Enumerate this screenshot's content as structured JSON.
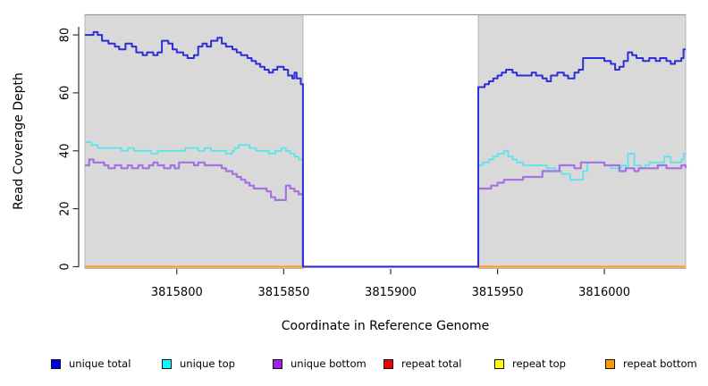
{
  "chart_data": {
    "type": "line",
    "step": true,
    "title": "",
    "xlabel": "Coordinate in Reference Genome",
    "ylabel": "Read Coverage Depth",
    "xlim": [
      3815757,
      3816038
    ],
    "ylim": [
      0,
      87
    ],
    "x_ticks": [
      3815800,
      3815850,
      3815900,
      3815950,
      3816000
    ],
    "y_ticks": [
      0,
      20,
      40,
      60,
      80
    ],
    "grid": false,
    "legend_position": "bottom",
    "plot_bg_color": "#d9d9d9",
    "plot_bg_border_color": "#b5b5b5",
    "gap_region": {
      "x0": 3815859,
      "x1": 3815941,
      "note": "white uncovered interval, all lines at 0"
    },
    "background_regions": [
      {
        "x0": 3815757,
        "x1": 3815859
      },
      {
        "x0": 3815941,
        "x1": 3816038
      }
    ],
    "series": [
      {
        "name": "unique total",
        "color": "#0000e6",
        "line_color": "#2d2dd9",
        "line_width": 2,
        "draw_order": 5,
        "segments": [
          [
            [
              3815757,
              80
            ],
            [
              3815761,
              81
            ],
            [
              3815763,
              80
            ],
            [
              3815765,
              78
            ],
            [
              3815768,
              77
            ],
            [
              3815771,
              76
            ],
            [
              3815773,
              75
            ],
            [
              3815776,
              77
            ],
            [
              3815779,
              76
            ],
            [
              3815781,
              74
            ],
            [
              3815784,
              73
            ],
            [
              3815786,
              74
            ],
            [
              3815789,
              73
            ],
            [
              3815791,
              74
            ],
            [
              3815793,
              78
            ],
            [
              3815796,
              77
            ],
            [
              3815798,
              75
            ],
            [
              3815800,
              74
            ],
            [
              3815803,
              73
            ],
            [
              3815805,
              72
            ],
            [
              3815808,
              73
            ],
            [
              3815810,
              76
            ],
            [
              3815812,
              77
            ],
            [
              3815814,
              76
            ],
            [
              3815816,
              78
            ],
            [
              3815819,
              79
            ],
            [
              3815821,
              77
            ],
            [
              3815823,
              76
            ],
            [
              3815826,
              75
            ],
            [
              3815828,
              74
            ],
            [
              3815830,
              73
            ],
            [
              3815833,
              72
            ],
            [
              3815835,
              71
            ],
            [
              3815837,
              70
            ],
            [
              3815839,
              69
            ],
            [
              3815841,
              68
            ],
            [
              3815843,
              67
            ],
            [
              3815845,
              68
            ],
            [
              3815847,
              69
            ],
            [
              3815850,
              68
            ],
            [
              3815852,
              66
            ],
            [
              3815854,
              65
            ],
            [
              3815855,
              67
            ],
            [
              3815856,
              65
            ],
            [
              3815858,
              63
            ],
            [
              3815859,
              0
            ],
            [
              3815941,
              62
            ],
            [
              3815944,
              63
            ],
            [
              3815946,
              64
            ],
            [
              3815948,
              65
            ],
            [
              3815950,
              66
            ],
            [
              3815952,
              67
            ],
            [
              3815954,
              68
            ],
            [
              3815957,
              67
            ],
            [
              3815959,
              66
            ],
            [
              3815963,
              66
            ],
            [
              3815966,
              67
            ],
            [
              3815968,
              66
            ],
            [
              3815971,
              65
            ],
            [
              3815973,
              64
            ],
            [
              3815975,
              66
            ],
            [
              3815978,
              67
            ],
            [
              3815981,
              66
            ],
            [
              3815983,
              65
            ],
            [
              3815986,
              67
            ],
            [
              3815988,
              68
            ],
            [
              3815990,
              72
            ],
            [
              3815997,
              72
            ],
            [
              3816000,
              71
            ],
            [
              3816003,
              70
            ],
            [
              3816005,
              68
            ],
            [
              3816007,
              69
            ],
            [
              3816009,
              71
            ],
            [
              3816011,
              74
            ],
            [
              3816013,
              73
            ],
            [
              3816015,
              72
            ],
            [
              3816018,
              71
            ],
            [
              3816021,
              72
            ],
            [
              3816024,
              71
            ],
            [
              3816026,
              72
            ],
            [
              3816029,
              71
            ],
            [
              3816031,
              70
            ],
            [
              3816033,
              71
            ],
            [
              3816036,
              72
            ],
            [
              3816037,
              75
            ],
            [
              3816038,
              75
            ]
          ]
        ]
      },
      {
        "name": "unique top",
        "color": "#00ffff",
        "line_color": "#5ce4ec",
        "line_width": 1.8,
        "draw_order": 3,
        "segments": [
          [
            [
              3815757,
              43
            ],
            [
              3815760,
              42
            ],
            [
              3815763,
              41
            ],
            [
              3815771,
              41
            ],
            [
              3815774,
              40
            ],
            [
              3815777,
              41
            ],
            [
              3815780,
              40
            ],
            [
              3815785,
              40
            ],
            [
              3815788,
              39
            ],
            [
              3815791,
              40
            ],
            [
              3815801,
              40
            ],
            [
              3815804,
              41
            ],
            [
              3815807,
              41
            ],
            [
              3815810,
              40
            ],
            [
              3815813,
              41
            ],
            [
              3815816,
              40
            ],
            [
              3815820,
              40
            ],
            [
              3815823,
              39
            ],
            [
              3815826,
              40
            ],
            [
              3815827,
              41
            ],
            [
              3815829,
              42
            ],
            [
              3815832,
              42
            ],
            [
              3815834,
              41
            ],
            [
              3815837,
              40
            ],
            [
              3815840,
              40
            ],
            [
              3815843,
              39
            ],
            [
              3815846,
              40
            ],
            [
              3815849,
              41
            ],
            [
              3815851,
              40
            ],
            [
              3815853,
              39
            ],
            [
              3815855,
              38
            ],
            [
              3815857,
              37
            ],
            [
              3815859,
              0
            ],
            [
              3815941,
              35
            ],
            [
              3815943,
              36
            ],
            [
              3815946,
              37
            ],
            [
              3815948,
              38
            ],
            [
              3815950,
              39
            ],
            [
              3815953,
              40
            ],
            [
              3815955,
              38
            ],
            [
              3815957,
              37
            ],
            [
              3815959,
              36
            ],
            [
              3815962,
              35
            ],
            [
              3815969,
              35
            ],
            [
              3815973,
              34
            ],
            [
              3815977,
              33
            ],
            [
              3815980,
              32
            ],
            [
              3815984,
              30
            ],
            [
              3815988,
              30
            ],
            [
              3815990,
              33
            ],
            [
              3815992,
              36
            ],
            [
              3815997,
              36
            ],
            [
              3816000,
              35
            ],
            [
              3816003,
              34
            ],
            [
              3816008,
              35
            ],
            [
              3816010,
              34
            ],
            [
              3816011,
              39
            ],
            [
              3816014,
              35
            ],
            [
              3816017,
              34
            ],
            [
              3816019,
              35
            ],
            [
              3816021,
              36
            ],
            [
              3816025,
              36
            ],
            [
              3816028,
              38
            ],
            [
              3816031,
              36
            ],
            [
              3816034,
              36
            ],
            [
              3816036,
              37
            ],
            [
              3816037,
              39
            ],
            [
              3816038,
              39
            ]
          ]
        ]
      },
      {
        "name": "unique bottom",
        "color": "#a020f0",
        "line_color": "#a672e2",
        "line_width": 2.2,
        "draw_order": 4,
        "segments": [
          [
            [
              3815757,
              35
            ],
            [
              3815759,
              37
            ],
            [
              3815761,
              36
            ],
            [
              3815766,
              35
            ],
            [
              3815768,
              34
            ],
            [
              3815771,
              35
            ],
            [
              3815774,
              34
            ],
            [
              3815777,
              35
            ],
            [
              3815779,
              34
            ],
            [
              3815782,
              35
            ],
            [
              3815784,
              34
            ],
            [
              3815787,
              35
            ],
            [
              3815789,
              36
            ],
            [
              3815791,
              35
            ],
            [
              3815794,
              34
            ],
            [
              3815797,
              35
            ],
            [
              3815799,
              34
            ],
            [
              3815801,
              36
            ],
            [
              3815806,
              36
            ],
            [
              3815808,
              35
            ],
            [
              3815810,
              36
            ],
            [
              3815813,
              35
            ],
            [
              3815818,
              35
            ],
            [
              3815821,
              34
            ],
            [
              3815823,
              33
            ],
            [
              3815826,
              32
            ],
            [
              3815828,
              31
            ],
            [
              3815830,
              30
            ],
            [
              3815832,
              29
            ],
            [
              3815834,
              28
            ],
            [
              3815836,
              27
            ],
            [
              3815840,
              27
            ],
            [
              3815842,
              26
            ],
            [
              3815844,
              24
            ],
            [
              3815846,
              23
            ],
            [
              3815850,
              23
            ],
            [
              3815851,
              28
            ],
            [
              3815853,
              27
            ],
            [
              3815855,
              26
            ],
            [
              3815857,
              25
            ],
            [
              3815859,
              0
            ],
            [
              3815941,
              27
            ],
            [
              3815945,
              27
            ],
            [
              3815947,
              28
            ],
            [
              3815950,
              29
            ],
            [
              3815953,
              30
            ],
            [
              3815959,
              30
            ],
            [
              3815962,
              31
            ],
            [
              3815968,
              31
            ],
            [
              3815971,
              33
            ],
            [
              3815976,
              33
            ],
            [
              3815979,
              35
            ],
            [
              3815984,
              35
            ],
            [
              3815986,
              34
            ],
            [
              3815989,
              36
            ],
            [
              3815997,
              36
            ],
            [
              3816000,
              35
            ],
            [
              3816005,
              35
            ],
            [
              3816007,
              33
            ],
            [
              3816010,
              34
            ],
            [
              3816014,
              33
            ],
            [
              3816016,
              34
            ],
            [
              3816022,
              34
            ],
            [
              3816025,
              35
            ],
            [
              3816029,
              34
            ],
            [
              3816034,
              34
            ],
            [
              3816036,
              35
            ],
            [
              3816038,
              34
            ]
          ]
        ]
      },
      {
        "name": "repeat total",
        "color": "#ee0000",
        "line_color": "#ee0000",
        "line_width": 2,
        "draw_order": 0,
        "segments": [
          [
            [
              3815757,
              0
            ],
            [
              3815859,
              0
            ]
          ],
          [
            [
              3815941,
              0
            ],
            [
              3816038,
              0
            ]
          ]
        ]
      },
      {
        "name": "repeat top",
        "color": "#ffff00",
        "line_color": "#ffff00",
        "line_width": 2,
        "draw_order": 1,
        "segments": [
          [
            [
              3815757,
              0
            ],
            [
              3815859,
              0
            ]
          ],
          [
            [
              3815941,
              0
            ],
            [
              3816038,
              0
            ]
          ]
        ]
      },
      {
        "name": "repeat bottom",
        "color": "#ff9900",
        "line_color": "#ff9d28",
        "line_width": 2.2,
        "draw_order": 2,
        "segments": [
          [
            [
              3815757,
              0
            ],
            [
              3815859,
              0
            ]
          ],
          [
            [
              3815941,
              0
            ],
            [
              3816038,
              0
            ]
          ]
        ]
      }
    ]
  }
}
